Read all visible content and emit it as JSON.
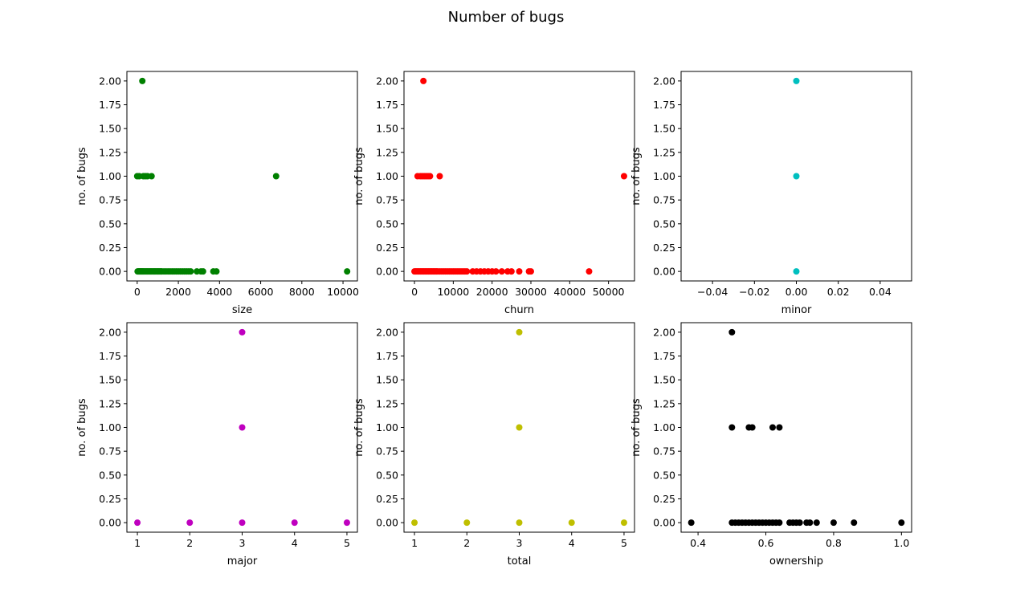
{
  "title": "Number of bugs",
  "chart_data": [
    {
      "type": "scatter",
      "color": "#008000",
      "xlabel": "size",
      "ylabel": "no. of bugs",
      "xlim": [
        -500,
        10700
      ],
      "ylim": [
        -0.1,
        2.1
      ],
      "xticks": [
        0,
        2000,
        4000,
        6000,
        8000,
        10000
      ],
      "xtick_labels": [
        "0",
        "2000",
        "4000",
        "6000",
        "8000",
        "10000"
      ],
      "yticks": [
        0,
        0.25,
        0.5,
        0.75,
        1,
        1.25,
        1.5,
        1.75,
        2
      ],
      "ytick_labels": [
        "0.00",
        "0.25",
        "0.50",
        "0.75",
        "1.00",
        "1.25",
        "1.50",
        "1.75",
        "2.00"
      ],
      "x": [
        20,
        60,
        100,
        140,
        180,
        220,
        260,
        300,
        350,
        400,
        450,
        500,
        550,
        600,
        650,
        700,
        750,
        800,
        850,
        900,
        950,
        1000,
        1050,
        1100,
        1150,
        1200,
        1300,
        1400,
        1500,
        1600,
        1700,
        1800,
        1900,
        2000,
        2100,
        2200,
        2300,
        2400,
        2500,
        2600,
        2900,
        3100,
        3200,
        3700,
        3850,
        10200,
        0,
        100,
        300,
        400,
        500,
        700,
        6750,
        250
      ],
      "y": [
        0,
        0,
        0,
        0,
        0,
        0,
        0,
        0,
        0,
        0,
        0,
        0,
        0,
        0,
        0,
        0,
        0,
        0,
        0,
        0,
        0,
        0,
        0,
        0,
        0,
        0,
        0,
        0,
        0,
        0,
        0,
        0,
        0,
        0,
        0,
        0,
        0,
        0,
        0,
        0,
        0,
        0,
        0,
        0,
        0,
        0,
        1,
        1,
        1,
        1,
        1,
        1,
        1,
        2
      ]
    },
    {
      "type": "scatter",
      "color": "#ff0000",
      "xlabel": "churn",
      "ylabel": "no. of bugs",
      "xlim": [
        -2700,
        56700
      ],
      "ylim": [
        -0.1,
        2.1
      ],
      "xticks": [
        0,
        10000,
        20000,
        30000,
        40000,
        50000
      ],
      "xtick_labels": [
        "0",
        "10000",
        "20000",
        "30000",
        "40000",
        "50000"
      ],
      "yticks": [
        0,
        0.25,
        0.5,
        0.75,
        1,
        1.25,
        1.5,
        1.75,
        2
      ],
      "ytick_labels": [
        "0.00",
        "0.25",
        "0.50",
        "0.75",
        "1.00",
        "1.25",
        "1.50",
        "1.75",
        "2.00"
      ],
      "x": [
        0,
        300,
        600,
        900,
        1200,
        1500,
        1800,
        2100,
        2400,
        2700,
        3000,
        3300,
        3600,
        3900,
        4200,
        4500,
        4800,
        5100,
        5400,
        5700,
        6000,
        6500,
        7000,
        7500,
        8000,
        8500,
        9000,
        9500,
        10000,
        10500,
        11000,
        11500,
        12000,
        12500,
        13000,
        13500,
        15000,
        16000,
        17000,
        18000,
        19000,
        20000,
        21000,
        22500,
        24000,
        25000,
        27000,
        29500,
        30000,
        45000,
        800,
        1500,
        2000,
        2500,
        3000,
        3500,
        4000,
        6500,
        54000,
        2300
      ],
      "y": [
        0,
        0,
        0,
        0,
        0,
        0,
        0,
        0,
        0,
        0,
        0,
        0,
        0,
        0,
        0,
        0,
        0,
        0,
        0,
        0,
        0,
        0,
        0,
        0,
        0,
        0,
        0,
        0,
        0,
        0,
        0,
        0,
        0,
        0,
        0,
        0,
        0,
        0,
        0,
        0,
        0,
        0,
        0,
        0,
        0,
        0,
        0,
        0,
        0,
        0,
        1,
        1,
        1,
        1,
        1,
        1,
        1,
        1,
        1,
        2
      ]
    },
    {
      "type": "scatter",
      "color": "#00bfbf",
      "xlabel": "minor",
      "ylabel": "no. of bugs",
      "xlim": [
        -0.055,
        0.055
      ],
      "ylim": [
        -0.1,
        2.1
      ],
      "xticks": [
        -0.04,
        -0.02,
        0,
        0.02,
        0.04
      ],
      "xtick_labels": [
        "−0.04",
        "−0.02",
        "0.00",
        "0.02",
        "0.04"
      ],
      "yticks": [
        0,
        0.25,
        0.5,
        0.75,
        1,
        1.25,
        1.5,
        1.75,
        2
      ],
      "ytick_labels": [
        "0.00",
        "0.25",
        "0.50",
        "0.75",
        "1.00",
        "1.25",
        "1.50",
        "1.75",
        "2.00"
      ],
      "x": [
        0,
        0,
        0
      ],
      "y": [
        0,
        1,
        2
      ]
    },
    {
      "type": "scatter",
      "color": "#bf00bf",
      "xlabel": "major",
      "ylabel": "no. of bugs",
      "xlim": [
        0.8,
        5.2
      ],
      "ylim": [
        -0.1,
        2.1
      ],
      "xticks": [
        1,
        2,
        3,
        4,
        5
      ],
      "xtick_labels": [
        "1",
        "2",
        "3",
        "4",
        "5"
      ],
      "yticks": [
        0,
        0.25,
        0.5,
        0.75,
        1,
        1.25,
        1.5,
        1.75,
        2
      ],
      "ytick_labels": [
        "0.00",
        "0.25",
        "0.50",
        "0.75",
        "1.00",
        "1.25",
        "1.50",
        "1.75",
        "2.00"
      ],
      "x": [
        1,
        2,
        3,
        4,
        5,
        3,
        3
      ],
      "y": [
        0,
        0,
        0,
        0,
        0,
        1,
        2
      ]
    },
    {
      "type": "scatter",
      "color": "#bfbf00",
      "xlabel": "total",
      "ylabel": "no. of bugs",
      "xlim": [
        0.8,
        5.2
      ],
      "ylim": [
        -0.1,
        2.1
      ],
      "xticks": [
        1,
        2,
        3,
        4,
        5
      ],
      "xtick_labels": [
        "1",
        "2",
        "3",
        "4",
        "5"
      ],
      "yticks": [
        0,
        0.25,
        0.5,
        0.75,
        1,
        1.25,
        1.5,
        1.75,
        2
      ],
      "ytick_labels": [
        "0.00",
        "0.25",
        "0.50",
        "0.75",
        "1.00",
        "1.25",
        "1.50",
        "1.75",
        "2.00"
      ],
      "x": [
        1,
        2,
        3,
        4,
        5,
        3,
        3
      ],
      "y": [
        0,
        0,
        0,
        0,
        0,
        1,
        2
      ]
    },
    {
      "type": "scatter",
      "color": "#000000",
      "xlabel": "ownership",
      "ylabel": "no. of bugs",
      "xlim": [
        0.35,
        1.03
      ],
      "ylim": [
        -0.1,
        2.1
      ],
      "xticks": [
        0.4,
        0.6,
        0.8,
        1.0
      ],
      "xtick_labels": [
        "0.4",
        "0.6",
        "0.8",
        "1.0"
      ],
      "yticks": [
        0,
        0.25,
        0.5,
        0.75,
        1,
        1.25,
        1.5,
        1.75,
        2
      ],
      "ytick_labels": [
        "0.00",
        "0.25",
        "0.50",
        "0.75",
        "1.00",
        "1.25",
        "1.50",
        "1.75",
        "2.00"
      ],
      "x": [
        0.38,
        0.5,
        0.51,
        0.52,
        0.53,
        0.54,
        0.55,
        0.56,
        0.57,
        0.58,
        0.59,
        0.6,
        0.61,
        0.62,
        0.63,
        0.64,
        0.67,
        0.68,
        0.69,
        0.7,
        0.72,
        0.73,
        0.75,
        0.8,
        0.86,
        1.0,
        0.5,
        0.55,
        0.56,
        0.62,
        0.64,
        0.5
      ],
      "y": [
        0,
        0,
        0,
        0,
        0,
        0,
        0,
        0,
        0,
        0,
        0,
        0,
        0,
        0,
        0,
        0,
        0,
        0,
        0,
        0,
        0,
        0,
        0,
        0,
        0,
        0,
        1,
        1,
        1,
        1,
        1,
        2
      ]
    }
  ]
}
